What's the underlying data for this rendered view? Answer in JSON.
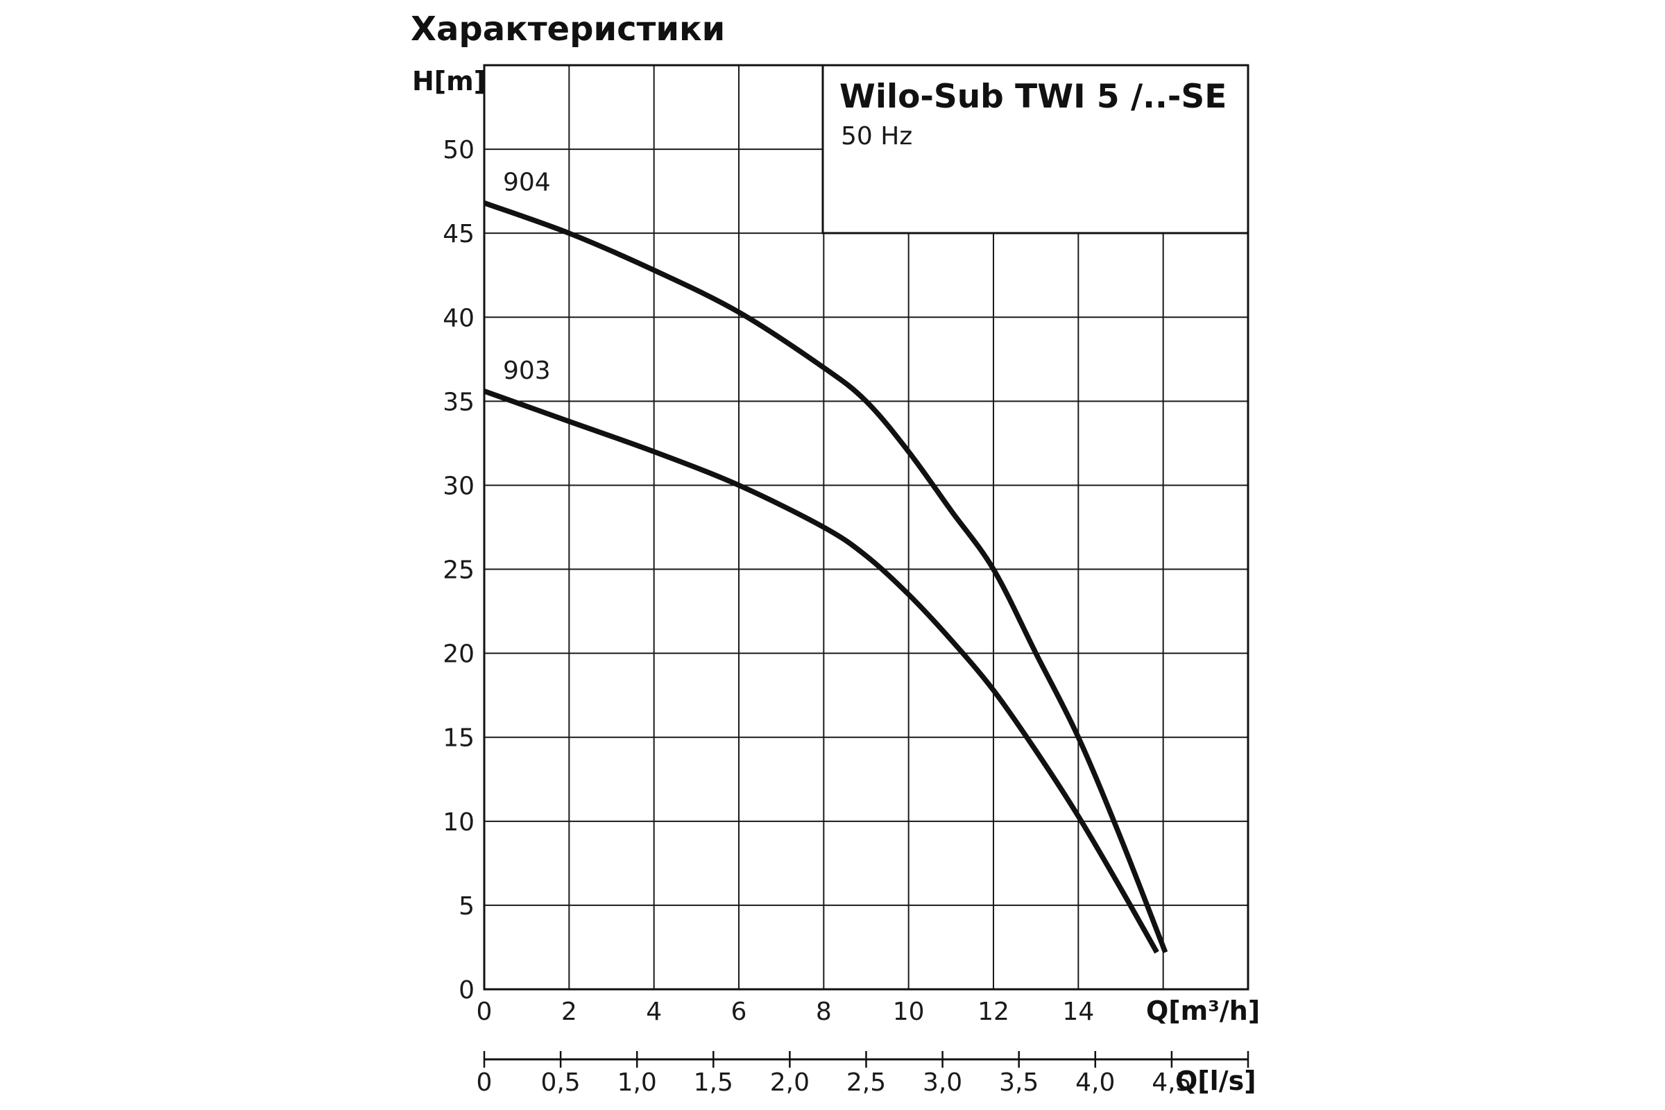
{
  "page": {
    "title": "Характеристики"
  },
  "info_box": {
    "title": "Wilo-Sub TWI 5 /..-SE",
    "subtitle": "50 Hz"
  },
  "chart_data": {
    "type": "line",
    "title": "Wilo-Sub TWI 5 /..-SE",
    "subtitle": "50 Hz",
    "ylabel": "H[m]",
    "xlabel": "Q[m³/h]",
    "secondary_xlabel": "Q[l/s]",
    "xlim": [
      0,
      18
    ],
    "ylim": [
      0,
      55
    ],
    "x_ticks": [
      0,
      2,
      4,
      6,
      8,
      10,
      12,
      14
    ],
    "x_tick_labels": [
      "0",
      "2",
      "4",
      "6",
      "8",
      "10",
      "12",
      "14"
    ],
    "y_ticks": [
      0,
      5,
      10,
      15,
      20,
      25,
      30,
      35,
      40,
      45,
      50
    ],
    "y_tick_labels": [
      "0",
      "5",
      "10",
      "15",
      "20",
      "25",
      "30",
      "35",
      "40",
      "45",
      "50"
    ],
    "secondary_x_ticks": [
      0,
      0.5,
      1.0,
      1.5,
      2.0,
      2.5,
      3.0,
      3.5,
      4.0,
      4.5
    ],
    "secondary_x_tick_labels": [
      "0",
      "0,5",
      "1,0",
      "1,5",
      "2,0",
      "2,5",
      "3,0",
      "3,5",
      "4,0",
      "4,5"
    ],
    "grid": true,
    "series": [
      {
        "name": "904",
        "x": [
          0,
          2,
          4,
          6,
          8,
          9,
          10,
          11,
          12,
          13,
          14,
          15,
          16.05
        ],
        "y": [
          46.8,
          45,
          42.8,
          40.3,
          37,
          35,
          32,
          28.5,
          25,
          20,
          15,
          9,
          2.2
        ]
      },
      {
        "name": "903",
        "x": [
          0,
          2,
          4,
          6,
          8,
          9,
          10,
          11,
          12,
          13,
          14,
          15,
          15.85
        ],
        "y": [
          35.6,
          33.8,
          32,
          30,
          27.5,
          25.8,
          23.5,
          20.8,
          17.8,
          14.2,
          10.3,
          6,
          2.2
        ]
      }
    ]
  }
}
